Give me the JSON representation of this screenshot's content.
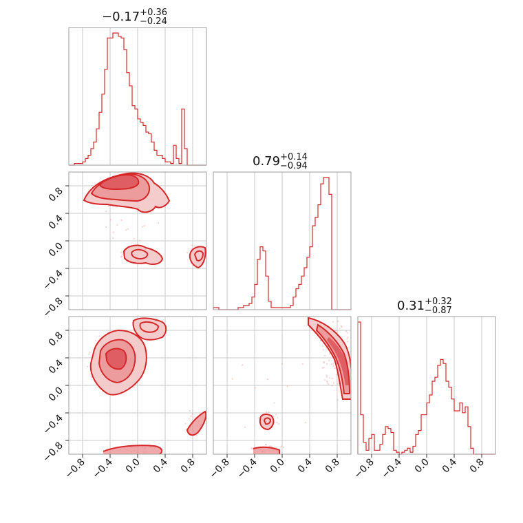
{
  "chart_data": {
    "type": "corner",
    "parameters": [
      {
        "title": {
          "base": "0.17",
          "sign": "−0",
          "plus": "+0.36",
          "minus": "−0.24"
        }
      },
      {
        "title": {
          "base": "0.79",
          "plus": "+0.14",
          "minus": "−0.94"
        }
      },
      {
        "title": {
          "base": "0.31",
          "plus": "+0.32",
          "minus": "−0.87"
        }
      }
    ],
    "titles": [
      {
        "value": "−0.17",
        "plus": "+0.36",
        "minus": "−0.24"
      },
      {
        "value": "0.79",
        "plus": "+0.14",
        "minus": "−0.94"
      },
      {
        "value": "0.31",
        "plus": "+0.32",
        "minus": "−0.87"
      }
    ],
    "range": [
      -1.0,
      1.0
    ],
    "ticks": [
      -0.8,
      -0.4,
      0.0,
      0.4,
      0.8
    ],
    "tick_labels": [
      "−0.8",
      "−0.4",
      "0.0",
      "0.4",
      "0.8"
    ],
    "grid": true,
    "color": "#d62728",
    "histograms": [
      {
        "bin_start": -1.0,
        "bin_width": 0.04,
        "counts": [
          0,
          0,
          1,
          1,
          1,
          2,
          4,
          6,
          10,
          14,
          22,
          32,
          43,
          58,
          77,
          77,
          80,
          80,
          78,
          77,
          70,
          56,
          48,
          36,
          34,
          28,
          26,
          24,
          20,
          19,
          14,
          9,
          6,
          6,
          4,
          2,
          2,
          1,
          12,
          4,
          1,
          34,
          10,
          0,
          0,
          0,
          0,
          0,
          0,
          0
        ]
      },
      {
        "bin_start": -1.0,
        "bin_width": 0.04,
        "counts": [
          1,
          1,
          0,
          0,
          0,
          0,
          0,
          0,
          0,
          1,
          1,
          2,
          2,
          3,
          6,
          12,
          24,
          30,
          28,
          16,
          4,
          1,
          1,
          1,
          1,
          1,
          1,
          1,
          2,
          6,
          10,
          12,
          16,
          20,
          25,
          30,
          40,
          44,
          50,
          60,
          63,
          63,
          55,
          0,
          0,
          0,
          0,
          0,
          0,
          0
        ]
      },
      {
        "bin_start": -1.0,
        "bin_width": 0.04,
        "counts": [
          67,
          20,
          6,
          2,
          8,
          10,
          2,
          2,
          5,
          10,
          14,
          13,
          11,
          2,
          1,
          0,
          1,
          2,
          3,
          1,
          4,
          10,
          12,
          20,
          20,
          26,
          30,
          37,
          39,
          45,
          48,
          46,
          37,
          34,
          28,
          22,
          22,
          26,
          21,
          24,
          14,
          3,
          0,
          0,
          0,
          0,
          0,
          0,
          0,
          0
        ]
      }
    ],
    "panels_2d": [
      {
        "row": 1,
        "col": 0,
        "x_param": 1,
        "y_param": 2
      },
      {
        "row": 2,
        "col": 0,
        "x_param": 1,
        "y_param": 3
      },
      {
        "row": 2,
        "col": 1,
        "x_param": 2,
        "y_param": 3
      }
    ]
  }
}
